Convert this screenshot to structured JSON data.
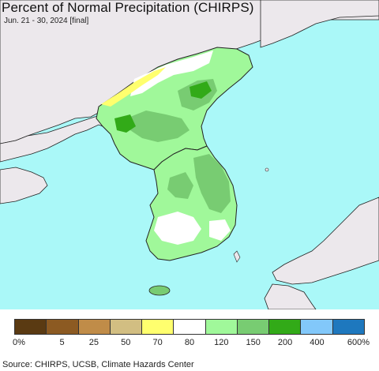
{
  "title": "Percent of Normal Precipitation (CHIRPS)",
  "subtitle": "Jun. 21 - 30, 2024 [final]",
  "source": "Source: CHIRPS, UCSB, Climate Hazards Center",
  "colors": {
    "ocean": "#aaf8f8",
    "land_outside": "#ece8ec",
    "border": "#222222"
  },
  "legend": {
    "colors": [
      "#5a3a12",
      "#8c5a22",
      "#c08c48",
      "#d2be82",
      "#ffff6e",
      "#ffffff",
      "#a0f89a",
      "#78cc72",
      "#32aa18",
      "#82c8fa",
      "#1e78be"
    ],
    "labels": [
      "0%",
      "5",
      "25",
      "50",
      "70",
      "80",
      "120",
      "150",
      "200",
      "400",
      "600%"
    ]
  }
}
